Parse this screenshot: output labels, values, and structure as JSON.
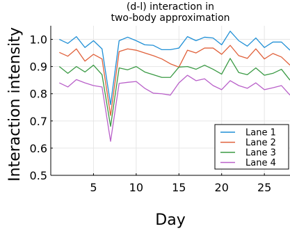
{
  "chart_data": {
    "type": "line",
    "title_lines": [
      "(d-l) interaction in",
      "two-body approximation"
    ],
    "xlabel": "Day",
    "ylabel": "Interaction intensity",
    "xlim": [
      0,
      28
    ],
    "ylim": [
      0.5,
      1.05
    ],
    "xticks": [
      5,
      10,
      15,
      20,
      25
    ],
    "yticks": [
      0.5,
      0.6,
      0.7,
      0.8,
      0.9,
      1.0
    ],
    "ytick_labels": [
      "0.5",
      "0.6",
      "0.7",
      "0.8",
      "0.9",
      "1.0"
    ],
    "grid": true,
    "legend_position": "bottom-right",
    "x": [
      1,
      2,
      3,
      4,
      5,
      6,
      7,
      8,
      9,
      10,
      11,
      12,
      13,
      14,
      15,
      16,
      17,
      18,
      19,
      20,
      21,
      22,
      23,
      24,
      25,
      26,
      27,
      28
    ],
    "series": [
      {
        "name": "Lane 1",
        "color": "#1f8fd6",
        "values": [
          1.0,
          0.985,
          1.01,
          0.97,
          0.995,
          0.965,
          0.76,
          0.995,
          1.008,
          0.995,
          0.98,
          0.978,
          0.962,
          0.962,
          0.968,
          1.01,
          0.995,
          1.008,
          1.005,
          0.98,
          1.03,
          0.995,
          0.975,
          1.005,
          0.97,
          0.99,
          0.99,
          0.96
        ]
      },
      {
        "name": "Lane 2",
        "color": "#e0603a",
        "values": [
          0.952,
          0.938,
          0.965,
          0.92,
          0.945,
          0.928,
          0.72,
          0.955,
          0.965,
          0.96,
          0.95,
          0.94,
          0.928,
          0.91,
          0.898,
          0.96,
          0.95,
          0.968,
          0.968,
          0.945,
          0.978,
          0.94,
          0.93,
          0.965,
          0.928,
          0.948,
          0.935,
          0.905
        ]
      },
      {
        "name": "Lane 3",
        "color": "#3a9a44",
        "values": [
          0.9,
          0.875,
          0.9,
          0.88,
          0.905,
          0.87,
          0.68,
          0.895,
          0.888,
          0.9,
          0.88,
          0.87,
          0.86,
          0.86,
          0.898,
          0.9,
          0.89,
          0.905,
          0.89,
          0.872,
          0.93,
          0.878,
          0.87,
          0.895,
          0.868,
          0.875,
          0.89,
          0.85
        ]
      },
      {
        "name": "Lane 4",
        "color": "#b960c9",
        "values": [
          0.84,
          0.825,
          0.852,
          0.84,
          0.83,
          0.825,
          0.625,
          0.838,
          0.842,
          0.845,
          0.82,
          0.802,
          0.8,
          0.795,
          0.84,
          0.868,
          0.848,
          0.855,
          0.83,
          0.815,
          0.848,
          0.83,
          0.82,
          0.84,
          0.815,
          0.822,
          0.83,
          0.795
        ]
      }
    ]
  }
}
